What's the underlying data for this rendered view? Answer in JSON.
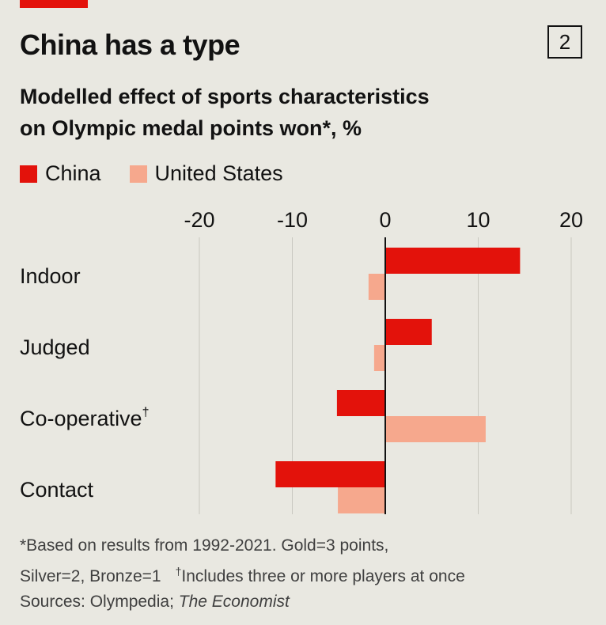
{
  "header": {
    "title": "China has a type",
    "chart_number": "2",
    "subtitle_line1": "Modelled effect of sports characteristics",
    "subtitle_line2": "on Olympic medal points won*, %"
  },
  "legend": [
    {
      "name": "China",
      "color": "#e3120b"
    },
    {
      "name": "United States",
      "color": "#f6a88d"
    }
  ],
  "chart_data": {
    "type": "bar",
    "orientation": "horizontal",
    "categories": [
      "Indoor",
      "Judged",
      "Co-operative",
      "Contact"
    ],
    "category_marks": [
      "",
      "",
      "†",
      ""
    ],
    "series": [
      {
        "name": "China",
        "color": "#e3120b",
        "values": [
          14.5,
          5,
          -5.2,
          -11.8
        ]
      },
      {
        "name": "United States",
        "color": "#f6a88d",
        "values": [
          -1.8,
          -1.2,
          10.8,
          -5.1
        ]
      }
    ],
    "xlim": [
      -20,
      20
    ],
    "xticks": [
      -20,
      -10,
      0,
      10,
      20
    ],
    "xtick_labels": [
      "-20",
      "-10",
      "0",
      "10",
      "20"
    ],
    "grid": true,
    "legend_position": "top-left"
  },
  "footnotes": {
    "note1_a": "*Based on results from 1992-2021. Gold=3 points,",
    "note1_b": "Silver=2, Bronze=1",
    "dagger": "†",
    "note2": "Includes three or more players at once",
    "sources_prefix": "Sources: Olympedia; ",
    "sources_italic": "The Economist"
  }
}
